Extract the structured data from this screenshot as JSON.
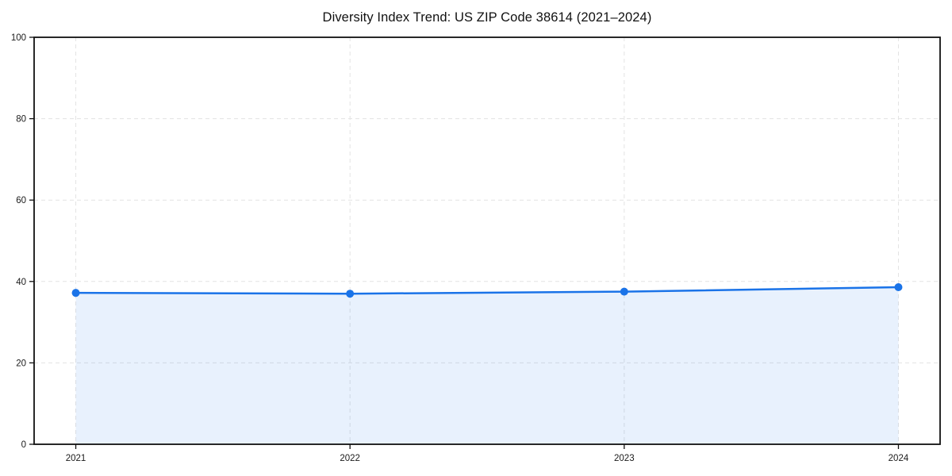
{
  "page": {
    "background_color": "#ffffff"
  },
  "chart_data": {
    "type": "area",
    "title": "Diversity Index Trend: US ZIP Code 38614 (2021–2024)",
    "categories": [
      "2021",
      "2022",
      "2023",
      "2024"
    ],
    "values": [
      37.2,
      37.0,
      37.5,
      38.6
    ],
    "xlabel": "",
    "ylabel": "",
    "ylim": [
      0,
      100
    ],
    "yticks": [
      0,
      20,
      40,
      60,
      80,
      100
    ],
    "grid": true,
    "grid_style": "dashed",
    "legend_position": "none",
    "line_color": "#1a73e8",
    "marker_color": "#1a73e8",
    "fill_color": "rgba(26,115,232,0.10)",
    "grid_color": "#e3e3e3",
    "spine_color": "#111111",
    "tick_label_color": "#1a1a1a"
  }
}
